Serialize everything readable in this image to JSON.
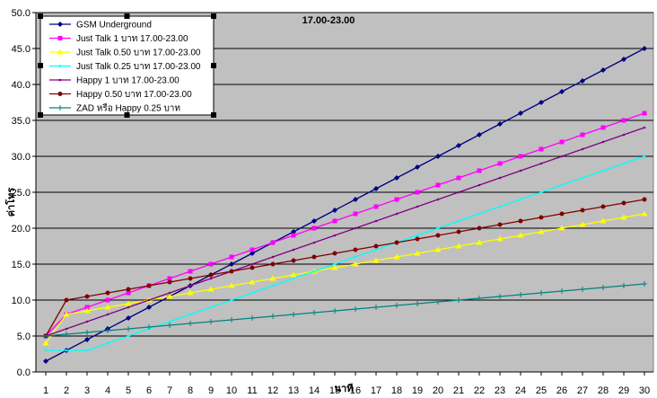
{
  "chart_data": {
    "type": "line",
    "title": "17.00-23.00",
    "xlabel": "นาที",
    "ylabel": "ค่าโทร",
    "ylim": [
      0,
      50
    ],
    "y_ticks": [
      "0.0",
      "5.0",
      "10.0",
      "15.0",
      "20.0",
      "25.0",
      "30.0",
      "35.0",
      "40.0",
      "45.0",
      "50.0"
    ],
    "x": [
      1,
      2,
      3,
      4,
      5,
      6,
      7,
      8,
      9,
      10,
      11,
      12,
      13,
      14,
      15,
      16,
      17,
      18,
      19,
      20,
      21,
      22,
      23,
      24,
      25,
      26,
      27,
      28,
      29,
      30
    ],
    "grid": "horizontal",
    "legend_position": "top-left",
    "plot_background": "#c0c0c0",
    "series": [
      {
        "name": "GSM Underground",
        "color": "#000080",
        "marker": "diamond",
        "values": [
          1.5,
          3,
          4.5,
          6,
          7.5,
          9,
          10.5,
          12,
          13.5,
          15,
          16.5,
          18,
          19.5,
          21,
          22.5,
          24,
          25.5,
          27,
          28.5,
          30,
          31.5,
          33,
          34.5,
          36,
          37.5,
          39,
          40.5,
          42,
          43.5,
          45
        ]
      },
      {
        "name": "Just Talk 1 บาท 17.00-23.00",
        "color": "#ff00ff",
        "marker": "square",
        "values": [
          5,
          8,
          9,
          10,
          11,
          12,
          13,
          14,
          15,
          16,
          17,
          18,
          19,
          20,
          21,
          22,
          23,
          24,
          25,
          26,
          27,
          28,
          29,
          30,
          31,
          32,
          33,
          34,
          35,
          36
        ]
      },
      {
        "name": "Just Talk 0.50 บาท 17.00-23.00",
        "color": "#ffff00",
        "marker": "triangle",
        "values": [
          4,
          8,
          8.5,
          9,
          9.5,
          10,
          10.5,
          11,
          11.5,
          12,
          12.5,
          13,
          13.5,
          14,
          14.5,
          15,
          15.5,
          16,
          16.5,
          17,
          17.5,
          18,
          18.5,
          19,
          19.5,
          20,
          20.5,
          21,
          21.5,
          22
        ]
      },
      {
        "name": "Just Talk 0.25 บาท 17.00-23.00",
        "color": "#00ffff",
        "marker": "none",
        "values": [
          3,
          3,
          3,
          4,
          5,
          6,
          7,
          8,
          9,
          10,
          11,
          12,
          13,
          14,
          15,
          16,
          17,
          18,
          19,
          20,
          21,
          22,
          23,
          24,
          25,
          26,
          27,
          28,
          29,
          30
        ]
      },
      {
        "name": "Happy 1 บาท 17.00-23.00",
        "color": "#800080",
        "marker": "none",
        "values": [
          5,
          6,
          7,
          8,
          9,
          10,
          11,
          12,
          13,
          14,
          15,
          16,
          17,
          18,
          19,
          20,
          21,
          22,
          23,
          24,
          25,
          26,
          27,
          28,
          29,
          30,
          31,
          32,
          33,
          34
        ]
      },
      {
        "name": "Happy 0.50 บาท 17.00-23.00",
        "color": "#800000",
        "marker": "circle",
        "values": [
          5,
          10,
          10.5,
          11,
          11.5,
          12,
          12.5,
          13,
          13.5,
          14,
          14.5,
          15,
          15.5,
          16,
          16.5,
          17,
          17.5,
          18,
          18.5,
          19,
          19.5,
          20,
          20.5,
          21,
          21.5,
          22,
          22.5,
          23,
          23.5,
          24
        ]
      },
      {
        "name": "ZAD หรือ Happy 0.25 บาท",
        "color": "#008080",
        "marker": "plus",
        "values": [
          5,
          5.25,
          5.5,
          5.75,
          6,
          6.25,
          6.5,
          6.75,
          7,
          7.25,
          7.5,
          7.75,
          8,
          8.25,
          8.5,
          8.75,
          9,
          9.25,
          9.5,
          9.75,
          10,
          10.25,
          10.5,
          10.75,
          11,
          11.25,
          11.5,
          11.75,
          12,
          12.25
        ]
      }
    ]
  }
}
